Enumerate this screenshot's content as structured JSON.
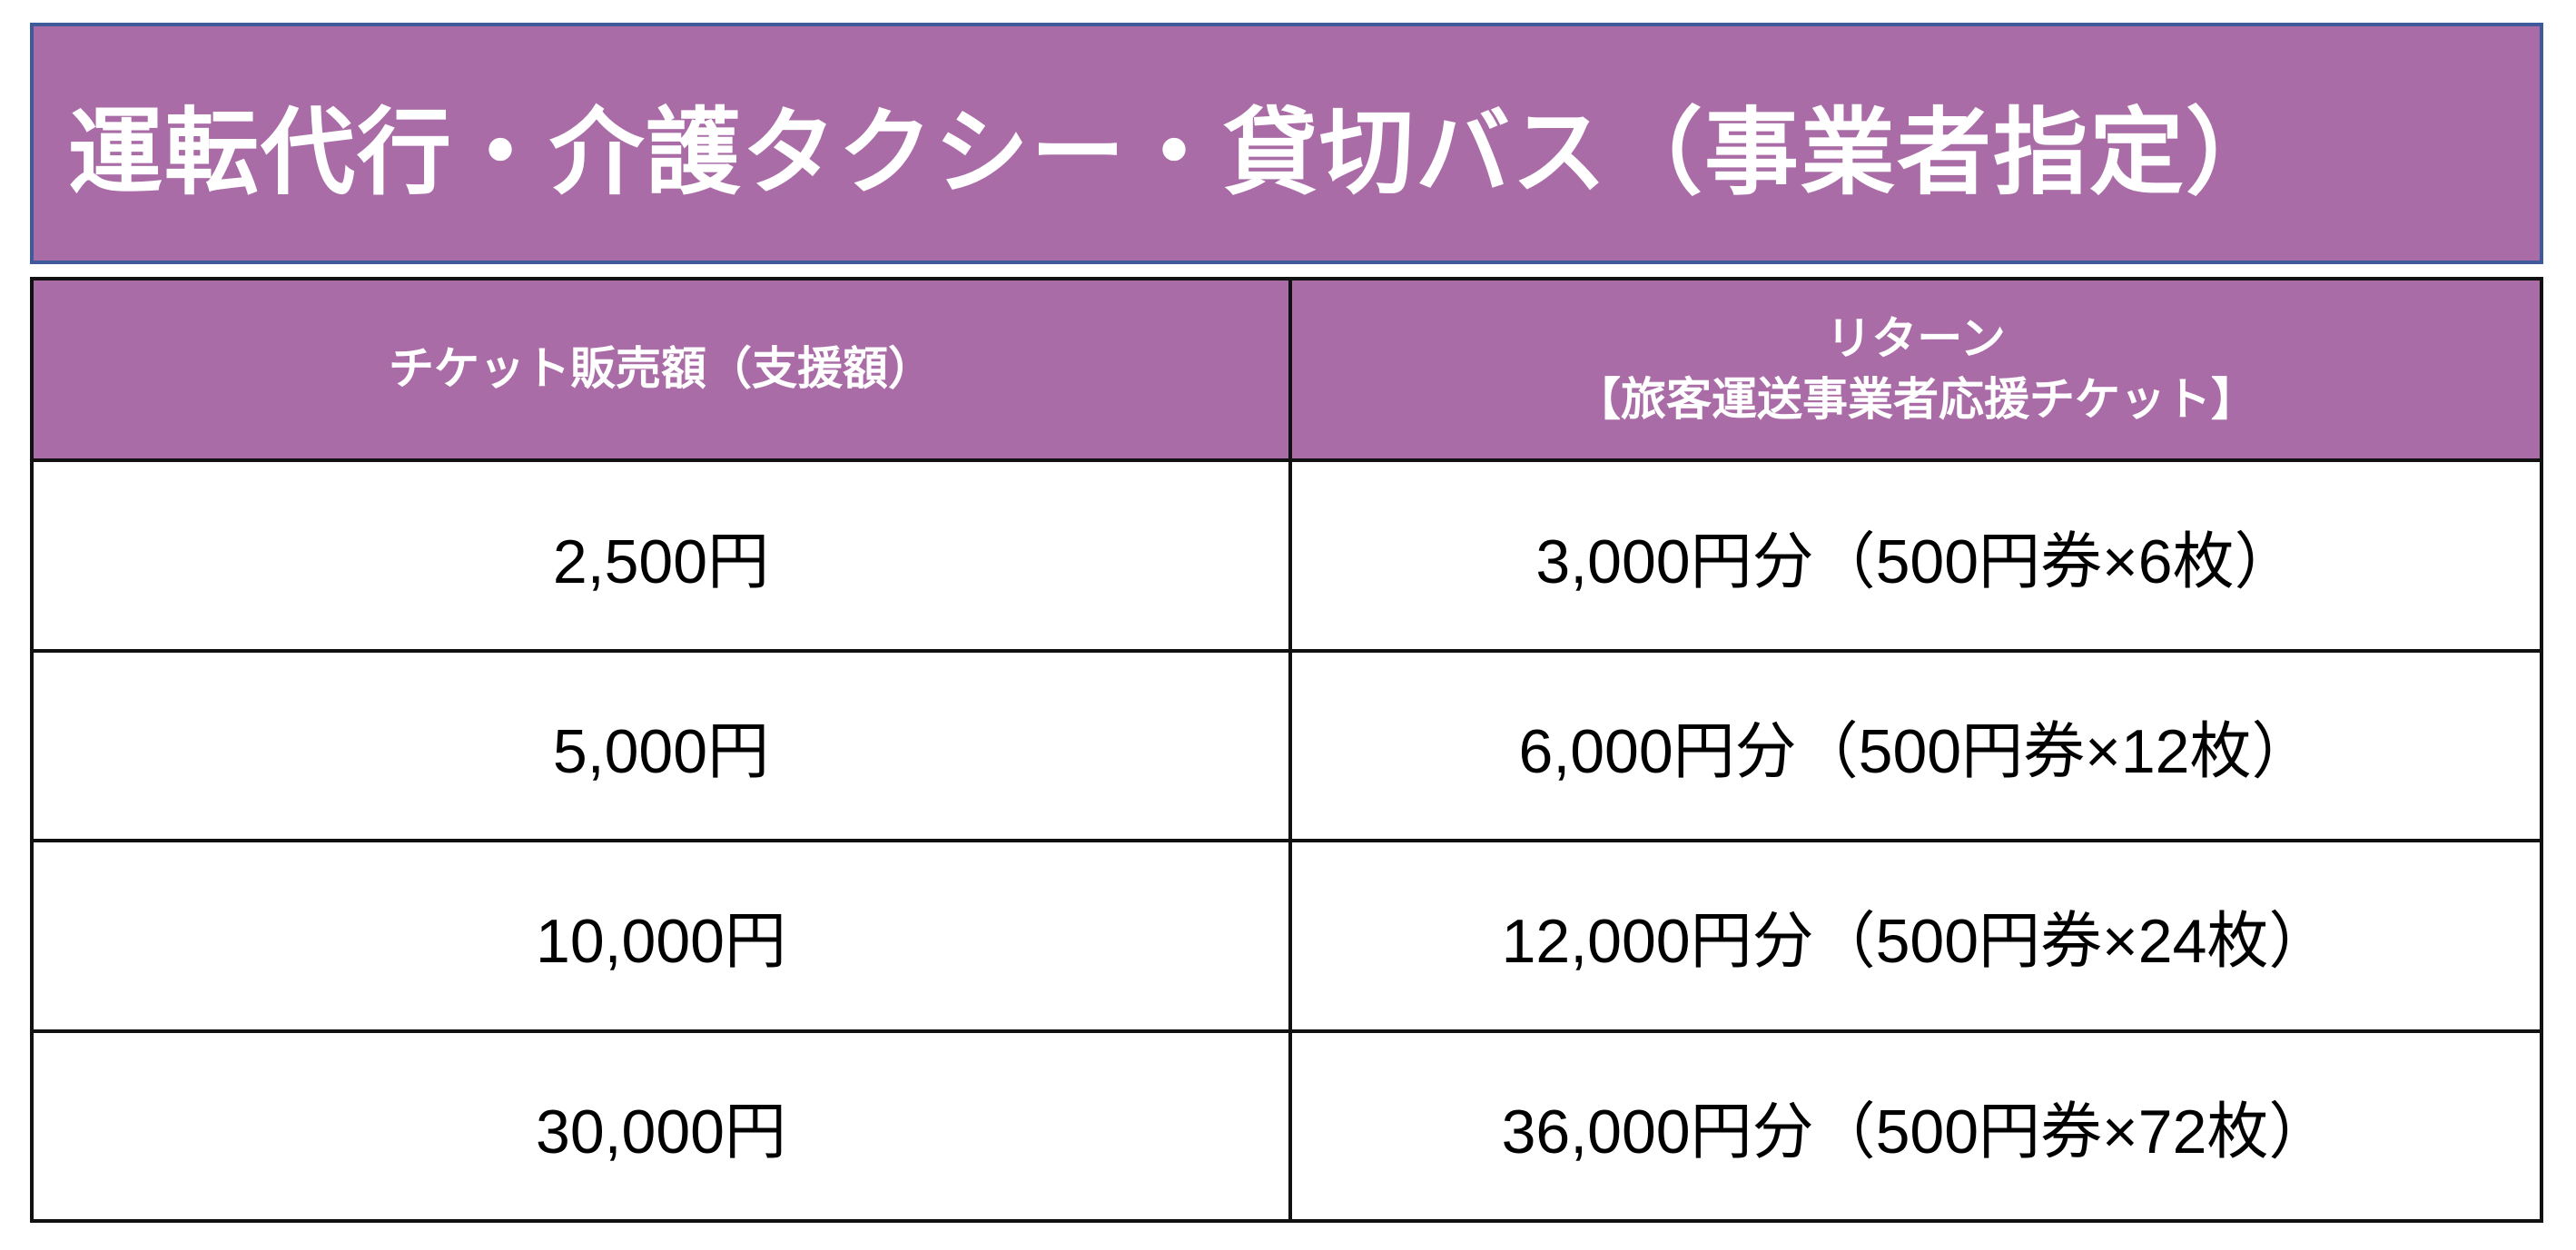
{
  "title": "運転代行・介護タクシー・貸切バス（事業者指定）",
  "colors": {
    "header_bg": "#aa6ca6",
    "title_border": "#3f5a9a"
  },
  "table": {
    "headers": [
      "チケット販売額（支援額）",
      "リターン",
      "【旅客運送事業者応援チケット】"
    ],
    "rows": [
      {
        "price": "2,500円",
        "return": "3,000円分（500円券×6枚）"
      },
      {
        "price": "5,000円",
        "return": "6,000円分（500円券×12枚）"
      },
      {
        "price": "10,000円",
        "return": "12,000円分（500円券×24枚）"
      },
      {
        "price": "30,000円",
        "return": "36,000円分（500円券×72枚）"
      }
    ]
  }
}
